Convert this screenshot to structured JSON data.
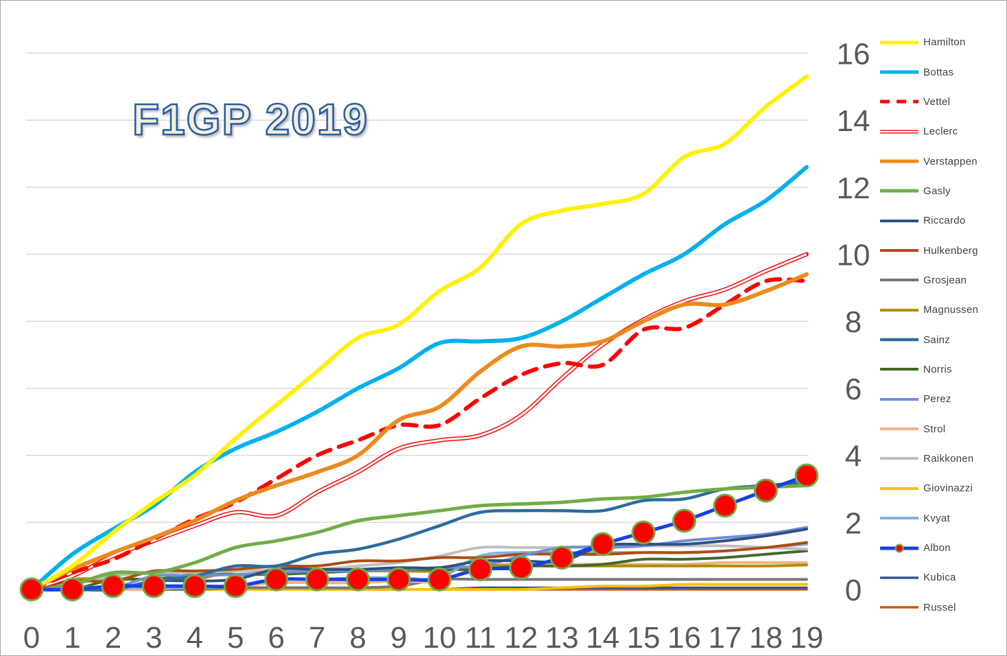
{
  "title": "F1GP 2019",
  "colors": {
    "background": "#ffffff",
    "border": "#a6a6a6",
    "gridline": "#d9d9d9",
    "axis_text": "#595959",
    "legend_text": "#3f3f3f",
    "title_fill": "#f3efdd",
    "title_stroke": "#2a5ca4",
    "marker_fill": "#ff0000",
    "marker_stroke": "#70ad47"
  },
  "chart_data": {
    "type": "line",
    "title": "F1GP 2019",
    "xlabel": "",
    "ylabel": "",
    "x": [
      0,
      1,
      2,
      3,
      4,
      5,
      6,
      7,
      8,
      9,
      10,
      11,
      12,
      13,
      14,
      15,
      16,
      17,
      18,
      19
    ],
    "x_ticks": [
      "0",
      "1",
      "2",
      "3",
      "4",
      "5",
      "6",
      "7",
      "8",
      "9",
      "10",
      "11",
      "12",
      "13",
      "14",
      "15",
      "16",
      "17",
      "18",
      "19"
    ],
    "y_ticks": [
      0,
      2,
      4,
      6,
      8,
      10,
      12,
      14,
      16
    ],
    "ylim": [
      0,
      16
    ],
    "grid": true,
    "legend_position": "right",
    "smoothed_lines": true,
    "draw_order": [
      "Russel",
      "Kubica",
      "Giovinazzi",
      "Grosjean",
      "Strol",
      "Magnussen",
      "Norris",
      "Raikkonen",
      "Kvyat",
      "Hulkenberg",
      "Perez",
      "Riccardo",
      "Sainz",
      "Gasly",
      "Leclerc",
      "Vettel",
      "Verstappen",
      "Bottas",
      "Hamilton",
      "Albon"
    ],
    "series": [
      {
        "name": "Hamilton",
        "color": "#fff101",
        "width": 6,
        "style": "solid",
        "values": [
          0,
          0.7,
          1.7,
          2.6,
          3.4,
          4.5,
          5.5,
          6.5,
          7.5,
          7.9,
          8.9,
          9.6,
          10.9,
          11.3,
          11.5,
          11.8,
          12.9,
          13.3,
          14.4,
          15.3
        ]
      },
      {
        "name": "Bottas",
        "color": "#00b0f0",
        "width": 6,
        "style": "solid",
        "values": [
          0,
          1.05,
          1.8,
          2.5,
          3.5,
          4.2,
          4.7,
          5.3,
          6.0,
          6.6,
          7.35,
          7.4,
          7.5,
          8.0,
          8.7,
          9.4,
          10.0,
          10.9,
          11.6,
          12.6
        ]
      },
      {
        "name": "Vettel",
        "color": "#ff0000",
        "width": 6,
        "style": "dashed",
        "values": [
          0,
          0.5,
          0.9,
          1.5,
          2.1,
          2.6,
          3.3,
          4.0,
          4.45,
          4.9,
          4.9,
          5.7,
          6.4,
          6.75,
          6.7,
          7.75,
          7.8,
          8.5,
          9.2,
          9.2
        ]
      },
      {
        "name": "Leclerc",
        "color": "#ff0000",
        "width": 6,
        "style": "double",
        "values": [
          0,
          0.4,
          1.0,
          1.45,
          1.9,
          2.3,
          2.2,
          2.9,
          3.5,
          4.2,
          4.45,
          4.6,
          5.2,
          6.3,
          7.3,
          8.05,
          8.6,
          8.95,
          9.5,
          10.0
        ]
      },
      {
        "name": "Verstappen",
        "color": "#ed8a1c",
        "width": 6,
        "style": "solid",
        "values": [
          0,
          0.6,
          1.1,
          1.55,
          2.05,
          2.65,
          3.1,
          3.5,
          4.0,
          5.05,
          5.45,
          6.5,
          7.25,
          7.25,
          7.4,
          8.0,
          8.5,
          8.5,
          8.9,
          9.4
        ]
      },
      {
        "name": "Gasly",
        "color": "#70ad47",
        "width": 5,
        "style": "solid",
        "values": [
          0,
          0.15,
          0.5,
          0.5,
          0.8,
          1.25,
          1.45,
          1.7,
          2.05,
          2.2,
          2.35,
          2.5,
          2.55,
          2.6,
          2.7,
          2.75,
          2.9,
          3.0,
          3.05,
          3.1
        ]
      },
      {
        "name": "Riccardo",
        "color": "#2f5080",
        "width": 4,
        "style": "solid",
        "values": [
          0,
          0,
          0,
          0.25,
          0.25,
          0.3,
          0.6,
          0.6,
          0.6,
          0.65,
          0.65,
          0.85,
          0.85,
          0.85,
          1.3,
          1.35,
          1.35,
          1.45,
          1.6,
          1.8
        ]
      },
      {
        "name": "Hulkenberg",
        "color": "#af4b13",
        "width": 4,
        "style": "solid",
        "values": [
          0,
          0.25,
          0.25,
          0.55,
          0.55,
          0.6,
          0.7,
          0.7,
          0.85,
          0.85,
          0.95,
          0.95,
          1.05,
          1.05,
          1.05,
          1.1,
          1.1,
          1.15,
          1.25,
          1.4
        ]
      },
      {
        "name": "Grosjean",
        "color": "#767676",
        "width": 4,
        "style": "solid",
        "values": [
          0,
          0,
          0,
          0,
          0,
          0.05,
          0.05,
          0.05,
          0.05,
          0.1,
          0.3,
          0.3,
          0.3,
          0.3,
          0.3,
          0.3,
          0.3,
          0.3,
          0.3,
          0.3
        ]
      },
      {
        "name": "Magnussen",
        "color": "#b08c00",
        "width": 4,
        "style": "solid",
        "values": [
          0,
          0.3,
          0.3,
          0.3,
          0.3,
          0.55,
          0.55,
          0.55,
          0.55,
          0.55,
          0.55,
          0.7,
          0.7,
          0.7,
          0.7,
          0.7,
          0.7,
          0.7,
          0.7,
          0.73
        ]
      },
      {
        "name": "Sainz",
        "color": "#2c6c9c",
        "width": 4.5,
        "style": "solid",
        "values": [
          0,
          0,
          0,
          0.25,
          0.4,
          0.7,
          0.7,
          1.05,
          1.2,
          1.5,
          1.9,
          2.3,
          2.35,
          2.35,
          2.35,
          2.65,
          2.7,
          3.0,
          3.1,
          3.2
        ]
      },
      {
        "name": "Norris",
        "color": "#44682a",
        "width": 4,
        "style": "solid",
        "values": [
          0,
          0,
          0.3,
          0.3,
          0.45,
          0.45,
          0.45,
          0.5,
          0.55,
          0.6,
          0.6,
          0.6,
          0.7,
          0.7,
          0.75,
          0.9,
          0.9,
          0.95,
          1.05,
          1.15
        ]
      },
      {
        "name": "Perez",
        "color": "#6e8fd6",
        "width": 4,
        "style": "solid",
        "values": [
          0,
          0.05,
          0.05,
          0.4,
          0.4,
          0.45,
          0.5,
          0.55,
          0.55,
          0.6,
          0.65,
          0.7,
          1.0,
          1.25,
          1.25,
          1.3,
          1.45,
          1.55,
          1.65,
          1.85
        ]
      },
      {
        "name": "Strol",
        "color": "#f4b183",
        "width": 4,
        "style": "solid",
        "values": [
          0,
          0,
          0,
          0,
          0.1,
          0.1,
          0.2,
          0.2,
          0.2,
          0.25,
          0.25,
          0.7,
          0.75,
          0.75,
          0.75,
          0.75,
          0.75,
          0.8,
          0.8,
          0.8
        ]
      },
      {
        "name": "Raikkonen",
        "color": "#bfbfbf",
        "width": 4,
        "style": "solid",
        "values": [
          0,
          0.15,
          0.4,
          0.5,
          0.5,
          0.55,
          0.6,
          0.6,
          0.7,
          0.8,
          1.0,
          1.25,
          1.25,
          1.25,
          1.3,
          1.3,
          1.3,
          1.3,
          1.25,
          1.2
        ]
      },
      {
        "name": "Giovinazzi",
        "color": "#ffc000",
        "width": 4,
        "style": "solid",
        "values": [
          0,
          0,
          0,
          0,
          0,
          0,
          0,
          0,
          0,
          0,
          0,
          0,
          0,
          0.05,
          0.1,
          0.1,
          0.15,
          0.15,
          0.15,
          0.15
        ]
      },
      {
        "name": "Kvyat",
        "color": "#82b1dc",
        "width": 4,
        "style": "solid",
        "values": [
          0,
          0.05,
          0.05,
          0.05,
          0.05,
          0.1,
          0.3,
          0.3,
          0.35,
          0.35,
          0.35,
          1.0,
          1.1,
          1.1,
          1.1,
          1.1,
          1.1,
          1.15,
          1.25,
          1.35
        ]
      },
      {
        "name": "Albon",
        "color": "#1540e8",
        "width": 5,
        "style": "solid",
        "marker": {
          "shape": "circle",
          "radius": 16,
          "fill": "#ff0000",
          "stroke": "#70ad47",
          "stroke_width": 3
        },
        "values": [
          0,
          0,
          0.1,
          0.1,
          0.1,
          0.1,
          0.3,
          0.3,
          0.3,
          0.3,
          0.3,
          0.6,
          0.65,
          0.95,
          1.35,
          1.7,
          2.05,
          2.5,
          2.95,
          3.4
        ]
      },
      {
        "name": "Kubica",
        "color": "#2f5597",
        "width": 3.5,
        "style": "solid",
        "values": [
          0,
          0,
          0,
          0,
          0,
          0,
          0,
          0,
          0,
          0,
          0,
          0.05,
          0.05,
          0.05,
          0.05,
          0.05,
          0.05,
          0.05,
          0.05,
          0.05
        ]
      },
      {
        "name": "Russel",
        "color": "#c55a11",
        "width": 3.5,
        "style": "solid",
        "values": [
          0,
          0,
          0,
          0,
          0,
          0,
          0,
          0,
          0,
          0,
          0,
          0,
          0,
          0,
          0,
          0,
          0,
          0,
          0,
          0
        ]
      }
    ]
  }
}
